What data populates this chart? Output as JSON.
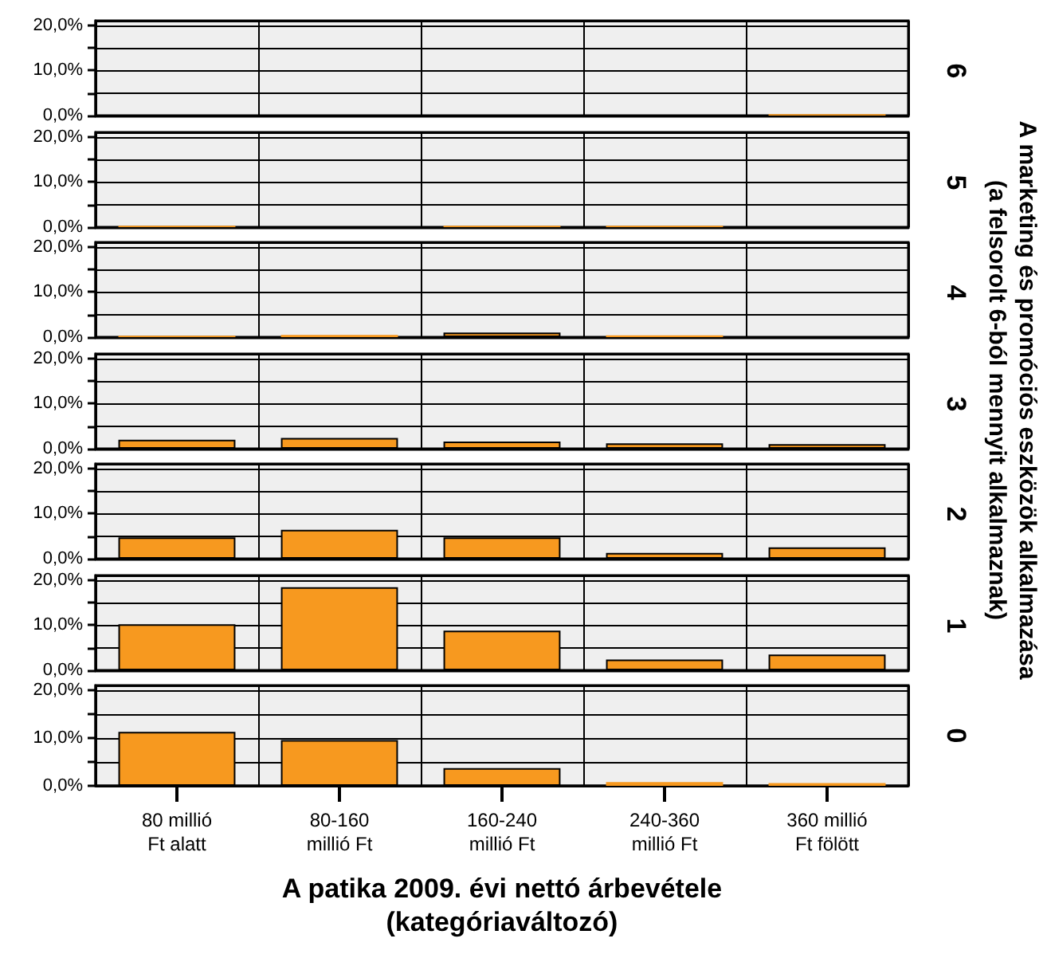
{
  "chart_data": [
    {
      "type": "bar",
      "y2label": "6",
      "categories": [
        null,
        null,
        null,
        null,
        null
      ],
      "values": [
        null,
        null,
        null,
        null,
        0.3
      ],
      "color": "#f7991f",
      "ylim": [
        0,
        21
      ],
      "yticks": [
        {
          "value": 0,
          "label": "0,0%"
        },
        {
          "value": 5,
          "label": null
        },
        {
          "value": 10,
          "label": "10,0%"
        },
        {
          "value": 15,
          "label": null
        },
        {
          "value": 20,
          "label": "20,0%"
        }
      ],
      "grid": true,
      "tick_labels": "y"
    },
    {
      "type": "bar",
      "y2label": "5",
      "categories": [
        null,
        null,
        null,
        null,
        null
      ],
      "values": [
        0.3,
        null,
        0.3,
        0.3,
        null
      ],
      "color": "#f7991f",
      "ylim": [
        0,
        21
      ],
      "yticks": [
        {
          "value": 0,
          "label": "0,0%"
        },
        {
          "value": 5,
          "label": null
        },
        {
          "value": 10,
          "label": "10,0%"
        },
        {
          "value": 15,
          "label": null
        },
        {
          "value": 20,
          "label": "20,0%"
        }
      ],
      "grid": true,
      "tick_labels": "y"
    },
    {
      "type": "bar",
      "y2label": "4",
      "categories": [
        null,
        null,
        null,
        null,
        null
      ],
      "values": [
        0.3,
        0.5,
        1.0,
        0.4,
        null
      ],
      "color": "#f7991f",
      "ylim": [
        0,
        21
      ],
      "yticks": [
        {
          "value": 0,
          "label": "0,0%"
        },
        {
          "value": 5,
          "label": null
        },
        {
          "value": 10,
          "label": "10,0%"
        },
        {
          "value": 15,
          "label": null
        },
        {
          "value": 20,
          "label": "20,0%"
        }
      ],
      "grid": true,
      "tick_labels": "y"
    },
    {
      "type": "bar",
      "y2label": "3",
      "categories": [
        null,
        null,
        null,
        null,
        null
      ],
      "values": [
        2.0,
        2.4,
        1.6,
        1.2,
        1.0
      ],
      "color": "#f7991f",
      "ylim": [
        0,
        21
      ],
      "yticks": [
        {
          "value": 0,
          "label": "0,0%"
        },
        {
          "value": 5,
          "label": null
        },
        {
          "value": 10,
          "label": "10,0%"
        },
        {
          "value": 15,
          "label": null
        },
        {
          "value": 20,
          "label": "20,0%"
        }
      ],
      "grid": true,
      "tick_labels": "y"
    },
    {
      "type": "bar",
      "y2label": "2",
      "categories": [
        null,
        null,
        null,
        null,
        null
      ],
      "values": [
        4.7,
        6.4,
        4.7,
        1.3,
        2.5
      ],
      "color": "#f7991f",
      "ylim": [
        0,
        21
      ],
      "yticks": [
        {
          "value": 0,
          "label": "0,0%"
        },
        {
          "value": 5,
          "label": null
        },
        {
          "value": 10,
          "label": "10,0%"
        },
        {
          "value": 15,
          "label": null
        },
        {
          "value": 20,
          "label": "20,0%"
        }
      ],
      "grid": true,
      "tick_labels": "y"
    },
    {
      "type": "bar",
      "y2label": "1",
      "categories": [
        null,
        null,
        null,
        null,
        null
      ],
      "values": [
        10.2,
        18.4,
        8.8,
        2.4,
        3.5
      ],
      "color": "#f7991f",
      "ylim": [
        0,
        21
      ],
      "yticks": [
        {
          "value": 0,
          "label": "0,0%"
        },
        {
          "value": 5,
          "label": null
        },
        {
          "value": 10,
          "label": "10,0%"
        },
        {
          "value": 15,
          "label": null
        },
        {
          "value": 20,
          "label": "20,0%"
        }
      ],
      "grid": true,
      "tick_labels": "y"
    },
    {
      "type": "bar",
      "y2label": "0",
      "categories": [
        "80 millió Ft alatt",
        "80-160 millió Ft",
        "160-240 millió Ft",
        "240-360 millió Ft",
        "360 millió Ft fölött"
      ],
      "values": [
        11.3,
        9.6,
        3.7,
        0.8,
        0.6
      ],
      "color": "#f7991f",
      "ylim": [
        0,
        21
      ],
      "yticks": [
        {
          "value": 0,
          "label": "0,0%"
        },
        {
          "value": 5,
          "label": null
        },
        {
          "value": 10,
          "label": "10,0%"
        },
        {
          "value": 15,
          "label": null
        },
        {
          "value": 20,
          "label": "20,0%"
        }
      ],
      "grid": true,
      "xlabel": "A patika 2009. évi nettó árbevétele\n(kategóriaváltozó)",
      "annotations": [
        "A marketing és promóciós eszközök alkalmazása\n(a felsorolt 6-ból mennyit alkalmaznak)"
      ]
    }
  ]
}
